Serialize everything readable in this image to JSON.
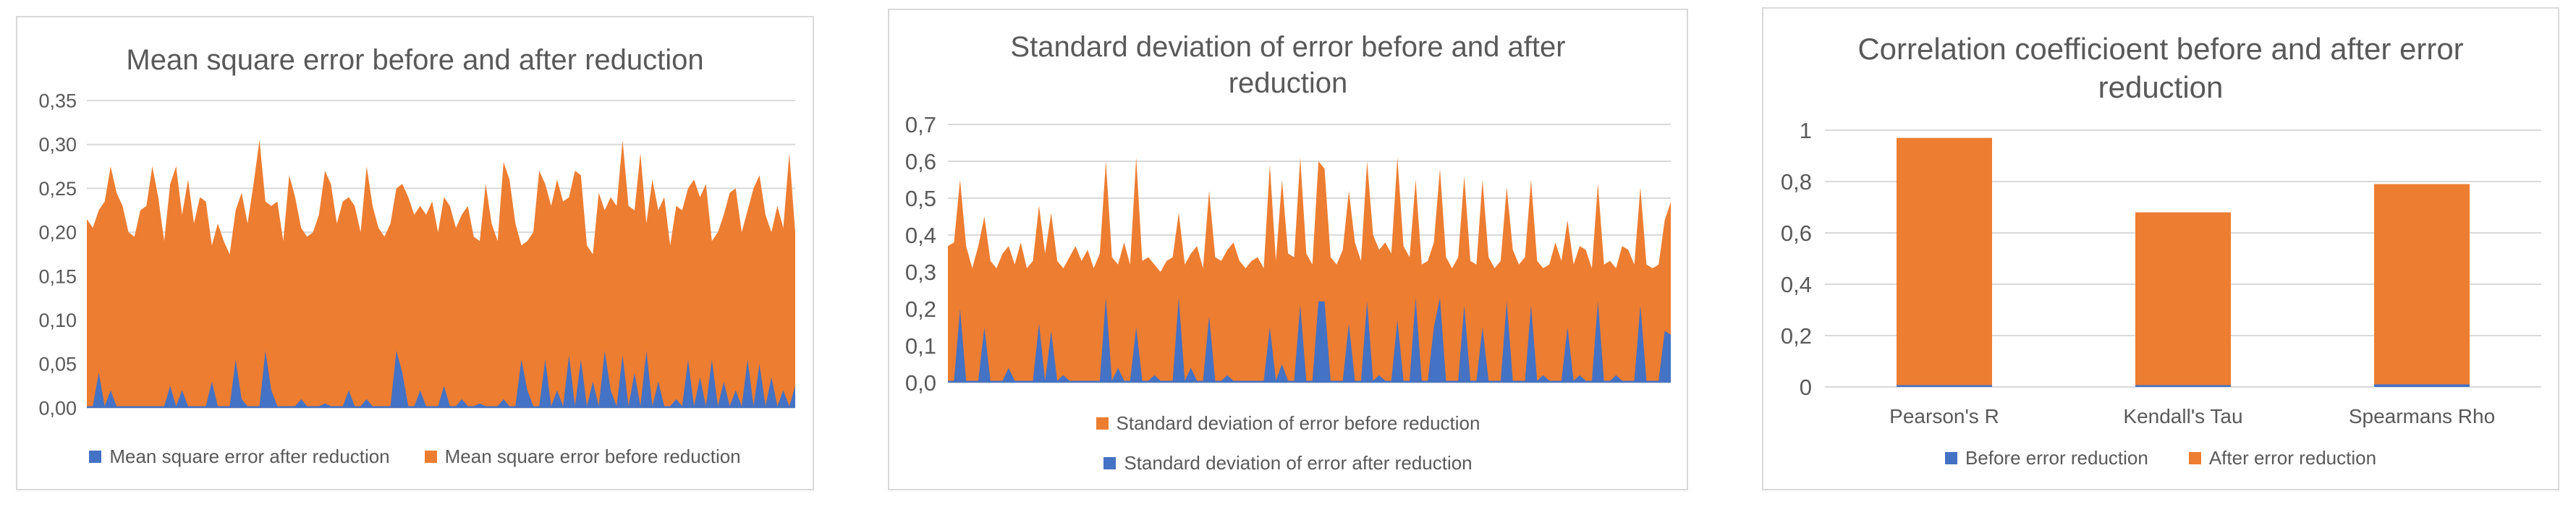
{
  "colors": {
    "series_blue": "#4472C4",
    "series_orange": "#ED7D31",
    "gridline": "#D9D9D9",
    "panel_border": "#D9D9D9",
    "text_gray": "#595959"
  },
  "chart_data": [
    {
      "type": "area",
      "title": "Mean square error before and after reduction",
      "xlabel": "",
      "ylabel": "",
      "ylim": [
        0,
        0.35
      ],
      "grid": true,
      "decimal_separator": ",",
      "ytick_labels": [
        "0,00",
        "0,05",
        "0,10",
        "0,15",
        "0,20",
        "0,25",
        "0,30",
        "0,35"
      ],
      "legend_position": "bottom",
      "series_render_order": [
        1,
        0
      ],
      "series": [
        {
          "name": "Mean square error after reduction",
          "color": "#4472C4",
          "values": [
            0.002,
            0.002,
            0.04,
            0.002,
            0.02,
            0.002,
            0.002,
            0.002,
            0.002,
            0.002,
            0.002,
            0.002,
            0.002,
            0.002,
            0.025,
            0.002,
            0.02,
            0.002,
            0.002,
            0.002,
            0.002,
            0.03,
            0.002,
            0.002,
            0.002,
            0.055,
            0.01,
            0.002,
            0.002,
            0.002,
            0.065,
            0.02,
            0.002,
            0.002,
            0.002,
            0.002,
            0.01,
            0.002,
            0.002,
            0.002,
            0.005,
            0.002,
            0.002,
            0.002,
            0.02,
            0.002,
            0.002,
            0.01,
            0.002,
            0.002,
            0.002,
            0.002,
            0.065,
            0.04,
            0.002,
            0.002,
            0.02,
            0.002,
            0.002,
            0.002,
            0.025,
            0.002,
            0.002,
            0.01,
            0.002,
            0.002,
            0.005,
            0.002,
            0.002,
            0.002,
            0.01,
            0.002,
            0.002,
            0.055,
            0.02,
            0.002,
            0.002,
            0.055,
            0.002,
            0.02,
            0.002,
            0.06,
            0.002,
            0.055,
            0.002,
            0.03,
            0.002,
            0.065,
            0.02,
            0.002,
            0.06,
            0.002,
            0.04,
            0.002,
            0.065,
            0.002,
            0.03,
            0.002,
            0.002,
            0.01,
            0.002,
            0.055,
            0.002,
            0.035,
            0.002,
            0.055,
            0.002,
            0.03,
            0.002,
            0.02,
            0.002,
            0.055,
            0.002,
            0.05,
            0.002,
            0.035,
            0.002,
            0.02,
            0.002,
            0.025
          ]
        },
        {
          "name": "Mean square error before reduction",
          "color": "#ED7D31",
          "values": [
            0.215,
            0.205,
            0.225,
            0.235,
            0.275,
            0.245,
            0.23,
            0.2,
            0.195,
            0.225,
            0.23,
            0.275,
            0.24,
            0.19,
            0.255,
            0.275,
            0.22,
            0.26,
            0.21,
            0.24,
            0.235,
            0.185,
            0.21,
            0.19,
            0.175,
            0.225,
            0.245,
            0.21,
            0.255,
            0.305,
            0.235,
            0.23,
            0.235,
            0.19,
            0.265,
            0.24,
            0.205,
            0.195,
            0.2,
            0.22,
            0.27,
            0.255,
            0.21,
            0.235,
            0.24,
            0.23,
            0.2,
            0.275,
            0.23,
            0.205,
            0.195,
            0.21,
            0.25,
            0.255,
            0.24,
            0.22,
            0.23,
            0.22,
            0.235,
            0.2,
            0.24,
            0.23,
            0.205,
            0.22,
            0.23,
            0.195,
            0.19,
            0.255,
            0.21,
            0.19,
            0.28,
            0.26,
            0.21,
            0.185,
            0.19,
            0.2,
            0.27,
            0.255,
            0.23,
            0.26,
            0.235,
            0.24,
            0.27,
            0.265,
            0.185,
            0.175,
            0.245,
            0.225,
            0.24,
            0.23,
            0.305,
            0.23,
            0.225,
            0.29,
            0.21,
            0.26,
            0.225,
            0.24,
            0.185,
            0.23,
            0.225,
            0.25,
            0.26,
            0.24,
            0.255,
            0.19,
            0.2,
            0.22,
            0.245,
            0.25,
            0.2,
            0.225,
            0.25,
            0.265,
            0.22,
            0.2,
            0.23,
            0.205,
            0.29,
            0.2
          ]
        }
      ]
    },
    {
      "type": "area",
      "title": "Standard deviation of error before and after reduction",
      "xlabel": "",
      "ylabel": "",
      "ylim": [
        0,
        0.7
      ],
      "grid": true,
      "decimal_separator": ",",
      "ytick_labels": [
        "0,0",
        "0,1",
        "0,2",
        "0,3",
        "0,4",
        "0,5",
        "0,6",
        "0,7"
      ],
      "legend_position": "bottom",
      "legend_rows": 2,
      "series_render_order": [
        0,
        1
      ],
      "series": [
        {
          "name": "Standard deviation of error before reduction",
          "color": "#ED7D31",
          "values": [
            0.37,
            0.38,
            0.55,
            0.37,
            0.31,
            0.37,
            0.45,
            0.33,
            0.31,
            0.35,
            0.37,
            0.32,
            0.38,
            0.31,
            0.33,
            0.48,
            0.35,
            0.46,
            0.33,
            0.31,
            0.34,
            0.37,
            0.33,
            0.36,
            0.31,
            0.35,
            0.6,
            0.34,
            0.32,
            0.38,
            0.32,
            0.61,
            0.33,
            0.34,
            0.32,
            0.3,
            0.33,
            0.34,
            0.46,
            0.32,
            0.35,
            0.37,
            0.31,
            0.52,
            0.34,
            0.33,
            0.36,
            0.38,
            0.33,
            0.31,
            0.33,
            0.34,
            0.31,
            0.59,
            0.33,
            0.55,
            0.35,
            0.34,
            0.61,
            0.35,
            0.32,
            0.6,
            0.58,
            0.34,
            0.32,
            0.36,
            0.52,
            0.38,
            0.33,
            0.6,
            0.4,
            0.36,
            0.38,
            0.35,
            0.61,
            0.37,
            0.34,
            0.55,
            0.32,
            0.33,
            0.38,
            0.58,
            0.34,
            0.31,
            0.34,
            0.56,
            0.33,
            0.32,
            0.55,
            0.34,
            0.31,
            0.33,
            0.53,
            0.36,
            0.32,
            0.34,
            0.55,
            0.33,
            0.31,
            0.32,
            0.38,
            0.33,
            0.44,
            0.32,
            0.37,
            0.36,
            0.31,
            0.54,
            0.32,
            0.33,
            0.31,
            0.37,
            0.36,
            0.32,
            0.53,
            0.32,
            0.31,
            0.32,
            0.44,
            0.49
          ]
        },
        {
          "name": "Standard deviation of error after reduction",
          "color": "#4472C4",
          "values": [
            0.005,
            0.005,
            0.2,
            0.005,
            0.005,
            0.005,
            0.15,
            0.005,
            0.005,
            0.005,
            0.04,
            0.005,
            0.005,
            0.005,
            0.005,
            0.16,
            0.005,
            0.14,
            0.005,
            0.02,
            0.005,
            0.005,
            0.005,
            0.005,
            0.005,
            0.005,
            0.23,
            0.005,
            0.04,
            0.005,
            0.005,
            0.15,
            0.005,
            0.005,
            0.02,
            0.005,
            0.005,
            0.005,
            0.23,
            0.005,
            0.04,
            0.005,
            0.005,
            0.18,
            0.005,
            0.005,
            0.02,
            0.005,
            0.005,
            0.005,
            0.005,
            0.005,
            0.005,
            0.15,
            0.005,
            0.05,
            0.005,
            0.005,
            0.21,
            0.005,
            0.005,
            0.22,
            0.22,
            0.005,
            0.005,
            0.005,
            0.16,
            0.005,
            0.005,
            0.22,
            0.005,
            0.02,
            0.005,
            0.005,
            0.17,
            0.005,
            0.005,
            0.23,
            0.005,
            0.005,
            0.15,
            0.23,
            0.005,
            0.005,
            0.005,
            0.21,
            0.005,
            0.005,
            0.15,
            0.005,
            0.005,
            0.005,
            0.22,
            0.005,
            0.005,
            0.005,
            0.21,
            0.005,
            0.02,
            0.005,
            0.005,
            0.005,
            0.15,
            0.005,
            0.02,
            0.005,
            0.005,
            0.22,
            0.005,
            0.005,
            0.02,
            0.005,
            0.005,
            0.005,
            0.21,
            0.005,
            0.005,
            0.005,
            0.14,
            0.13
          ]
        }
      ]
    },
    {
      "type": "bar",
      "title": "Correlation coefficioent before and after error reduction",
      "xlabel": "",
      "ylabel": "",
      "ylim": [
        0,
        1
      ],
      "grid": true,
      "decimal_separator": ",",
      "ytick_labels": [
        "0",
        "0,2",
        "0,4",
        "0,6",
        "0,8",
        "1"
      ],
      "legend_position": "bottom",
      "categories": [
        "Pearson's R",
        "Kendall's Tau",
        "Spearmans Rho"
      ],
      "series_render_order": [
        1,
        0
      ],
      "series": [
        {
          "name": "Before error reduction",
          "color": "#4472C4",
          "values": [
            0.005,
            0.005,
            0.01
          ]
        },
        {
          "name": "After error reduction",
          "color": "#ED7D31",
          "values": [
            0.97,
            0.68,
            0.79
          ]
        }
      ]
    }
  ]
}
